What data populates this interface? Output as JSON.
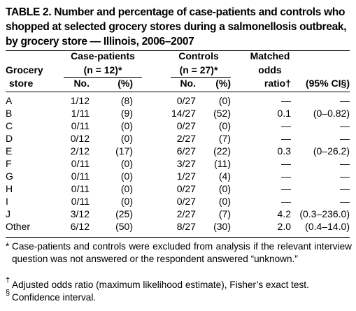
{
  "title": "TABLE 2. Number and percentage of case-patients and controls who shopped at selected grocery stores during a salmonellosis outbreak, by grocery store — Illinois, 2006–2007",
  "header": {
    "grocery_line1": "Grocery",
    "grocery_line2": "store",
    "cases_label": "Case-patients",
    "cases_n": "(n = 12)*",
    "controls_label": "Controls",
    "controls_n": "(n = 27)*",
    "matched_line1": "Matched",
    "matched_line2": "odds",
    "matched_line3": "ratio†",
    "ci_label": "(95% CI§)",
    "no_label": "No.",
    "pct_label": "(%)"
  },
  "rows": [
    {
      "store": "A",
      "case_no": "1/12",
      "case_pct": "(8)",
      "ctrl_no": "0/27",
      "ctrl_pct": "(0)",
      "or": "—",
      "ci": "—"
    },
    {
      "store": "B",
      "case_no": "1/11",
      "case_pct": "(9)",
      "ctrl_no": "14/27",
      "ctrl_pct": "(52)",
      "or": "0.1",
      "ci": "(0–0.82)"
    },
    {
      "store": "C",
      "case_no": "0/11",
      "case_pct": "(0)",
      "ctrl_no": "0/27",
      "ctrl_pct": "(0)",
      "or": "—",
      "ci": "—"
    },
    {
      "store": "D",
      "case_no": "0/12",
      "case_pct": "(0)",
      "ctrl_no": "2/27",
      "ctrl_pct": "(7)",
      "or": "—",
      "ci": "—"
    },
    {
      "store": "E",
      "case_no": "2/12",
      "case_pct": "(17)",
      "ctrl_no": "6/27",
      "ctrl_pct": "(22)",
      "or": "0.3",
      "ci": "(0–26.2)"
    },
    {
      "store": "F",
      "case_no": "0/11",
      "case_pct": "(0)",
      "ctrl_no": "3/27",
      "ctrl_pct": "(11)",
      "or": "—",
      "ci": "—"
    },
    {
      "store": "G",
      "case_no": "0/11",
      "case_pct": "(0)",
      "ctrl_no": "1/27",
      "ctrl_pct": "(4)",
      "or": "—",
      "ci": "—"
    },
    {
      "store": "H",
      "case_no": "0/11",
      "case_pct": "(0)",
      "ctrl_no": "0/27",
      "ctrl_pct": "(0)",
      "or": "—",
      "ci": "—"
    },
    {
      "store": "I",
      "case_no": "0/11",
      "case_pct": "(0)",
      "ctrl_no": "0/27",
      "ctrl_pct": "(0)",
      "or": "—",
      "ci": "—"
    },
    {
      "store": "J",
      "case_no": "3/12",
      "case_pct": "(25)",
      "ctrl_no": "2/27",
      "ctrl_pct": "(7)",
      "or": "4.2",
      "ci": "(0.3–236.0)"
    },
    {
      "store": "Other",
      "case_no": "6/12",
      "case_pct": "(50)",
      "ctrl_no": "8/27",
      "ctrl_pct": "(30)",
      "or": "2.0",
      "ci": "(0.4–14.0)"
    }
  ],
  "footnotes": {
    "star_mark": "*",
    "star_text": "Case-patients and controls were excluded from analysis if the relevant interview question was not answered or the respondent answered “unknown.”",
    "dagger_mark": "†",
    "dagger_text": "Adjusted odds ratio (maximum likelihood estimate), Fisher’s exact test.",
    "section_mark": "§",
    "section_text": "Confidence interval."
  }
}
